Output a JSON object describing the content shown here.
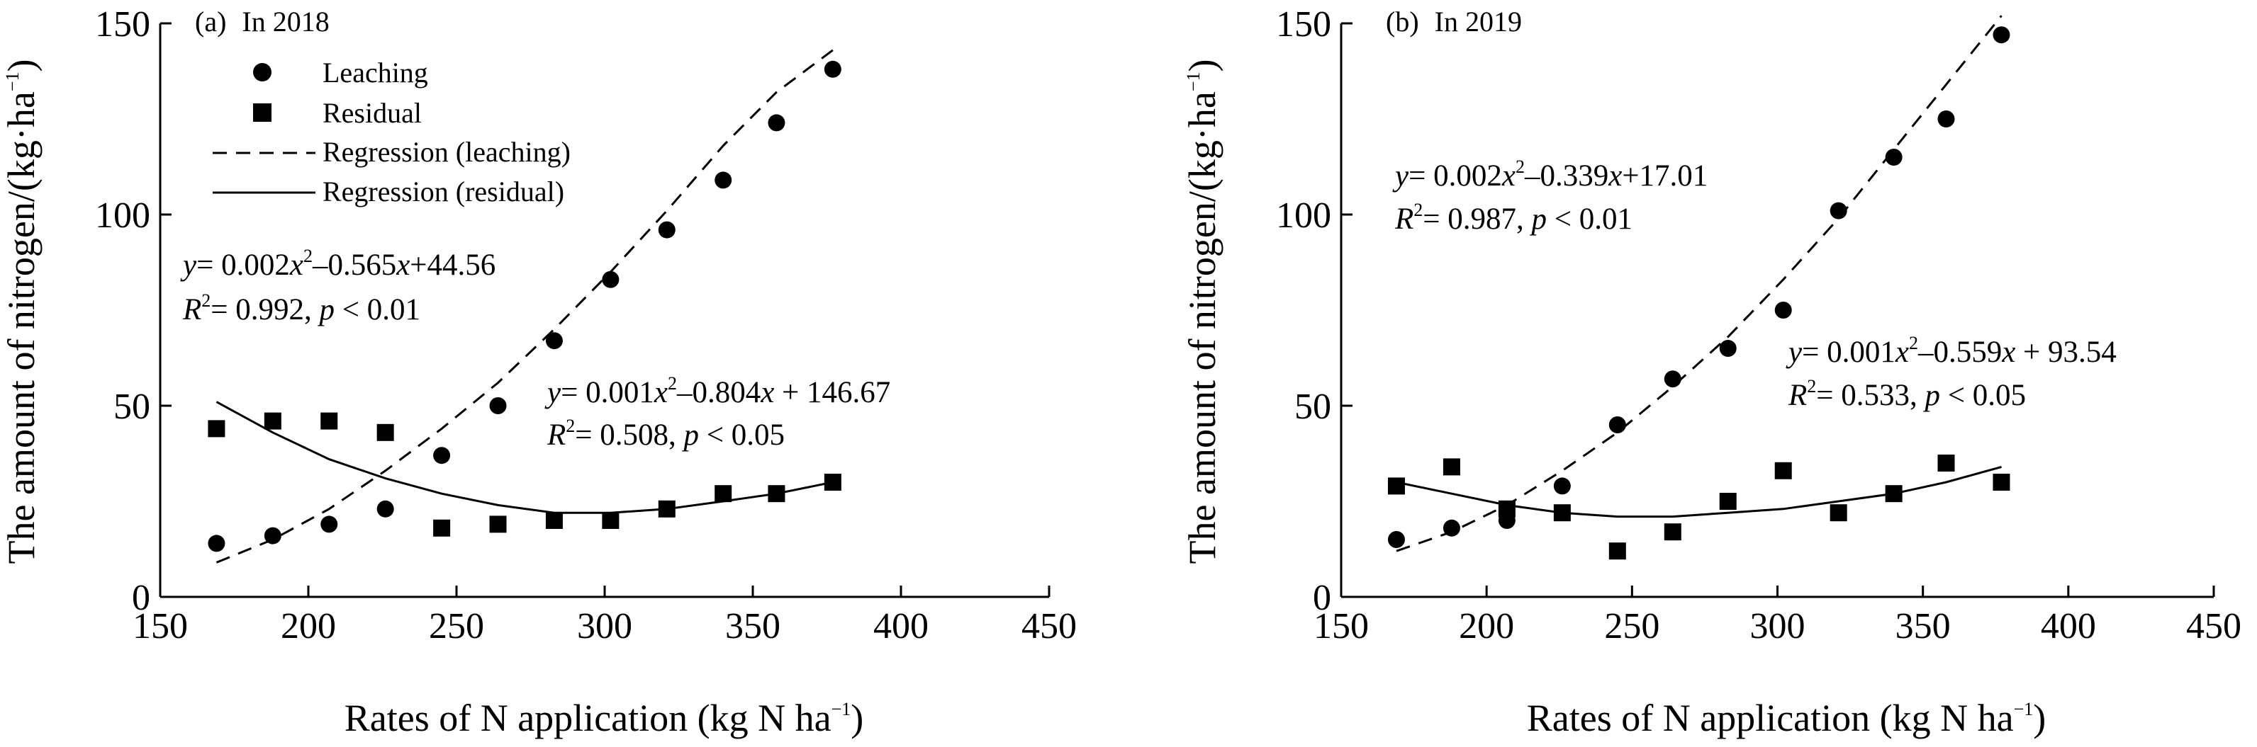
{
  "chart_data": [
    {
      "type": "scatter",
      "panel_label": "(a)",
      "title": "In 2018",
      "xlabel": "Rates of N application (kg N ha",
      "xlabel_sup": "−1",
      "xlabel_end": ")",
      "ylabel": "The amount of nitrogen/(kg·ha",
      "ylabel_sup": "−1",
      "ylabel_end": ")",
      "xlim": [
        150,
        450
      ],
      "ylim": [
        0,
        150
      ],
      "x_ticks": [
        "150",
        "200",
        "250",
        "300",
        "350",
        "400",
        "450"
      ],
      "y_ticks": [
        "0",
        "50",
        "100",
        "150"
      ],
      "legend": {
        "position": "top-left",
        "entries": [
          "Leaching",
          "Residual",
          "Regression (leaching)",
          "Regression (residual)"
        ]
      },
      "series": [
        {
          "name": "Leaching",
          "marker": "circle",
          "x": [
            169,
            188,
            207,
            226,
            245,
            264,
            283,
            302,
            321,
            340,
            358,
            377
          ],
          "y": [
            14,
            16,
            19,
            23,
            37,
            50,
            67,
            83,
            96,
            109,
            124,
            138
          ]
        },
        {
          "name": "Residual",
          "marker": "square",
          "x": [
            169,
            188,
            207,
            226,
            245,
            264,
            283,
            302,
            321,
            340,
            358,
            377
          ],
          "y": [
            44,
            46,
            46,
            43,
            18,
            19,
            20,
            20,
            23,
            27,
            27,
            30
          ]
        }
      ],
      "regressions": [
        {
          "name": "Regression (leaching)",
          "style": "dashed",
          "x": [
            169,
            188,
            207,
            226,
            245,
            264,
            283,
            302,
            321,
            340,
            358,
            377
          ],
          "y": [
            9,
            15,
            23,
            33,
            44,
            56,
            70,
            85,
            101,
            118,
            132,
            143
          ]
        },
        {
          "name": "Regression (residual)",
          "style": "solid",
          "x": [
            169,
            188,
            207,
            226,
            245,
            264,
            283,
            302,
            321,
            340,
            358,
            377
          ],
          "y": [
            51,
            43,
            36,
            31,
            27,
            24,
            22,
            22,
            23,
            25,
            27,
            30
          ]
        }
      ],
      "annotations": [
        {
          "key": "eq_leach",
          "eq": "y= 0.002x2–0.565x+44.56",
          "r2": "R2= 0.992, p < 0.01"
        },
        {
          "key": "eq_resid",
          "eq": "y= 0.001x2–0.804x + 146.67",
          "r2": "R2= 0.508, p < 0.05"
        }
      ]
    },
    {
      "type": "scatter",
      "panel_label": "(b)",
      "title": "In 2019",
      "xlabel": "Rates of N application (kg N ha",
      "xlabel_sup": "−1",
      "xlabel_end": ")",
      "ylabel": "The amount of nitrogen/(kg·ha",
      "ylabel_sup": "−1",
      "ylabel_end": ")",
      "xlim": [
        150,
        450
      ],
      "ylim": [
        0,
        150
      ],
      "x_ticks": [
        "150",
        "200",
        "250",
        "300",
        "350",
        "400",
        "450"
      ],
      "y_ticks": [
        "0",
        "50",
        "100",
        "150"
      ],
      "series": [
        {
          "name": "Leaching",
          "marker": "circle",
          "x": [
            169,
            188,
            207,
            226,
            245,
            264,
            283,
            302,
            321,
            340,
            358,
            377
          ],
          "y": [
            15,
            18,
            20,
            29,
            45,
            57,
            65,
            75,
            101,
            115,
            125,
            147
          ]
        },
        {
          "name": "Residual",
          "marker": "square",
          "x": [
            169,
            188,
            207,
            226,
            245,
            264,
            283,
            302,
            321,
            340,
            358,
            377
          ],
          "y": [
            29,
            34,
            23,
            22,
            12,
            17,
            25,
            33,
            22,
            27,
            35,
            30
          ]
        }
      ],
      "regressions": [
        {
          "name": "Regression (leaching)",
          "style": "dashed",
          "x": [
            169,
            188,
            207,
            226,
            245,
            264,
            283,
            302,
            321,
            340,
            358,
            377
          ],
          "y": [
            12,
            17,
            24,
            33,
            43,
            55,
            68,
            83,
            99,
            117,
            134,
            152
          ]
        },
        {
          "name": "Regression (residual)",
          "style": "solid",
          "x": [
            169,
            188,
            207,
            226,
            245,
            264,
            283,
            302,
            321,
            340,
            358,
            377
          ],
          "y": [
            30,
            27,
            24,
            22,
            21,
            21,
            22,
            23,
            25,
            27,
            30,
            34
          ]
        }
      ],
      "annotations": [
        {
          "key": "eq_leach",
          "eq": "y= 0.002x2–0.339x+17.01",
          "r2": "R2= 0.987, p < 0.01"
        },
        {
          "key": "eq_resid",
          "eq": "y= 0.001x2–0.559x + 93.54",
          "r2": "R2= 0.533, p < 0.05"
        }
      ]
    }
  ]
}
